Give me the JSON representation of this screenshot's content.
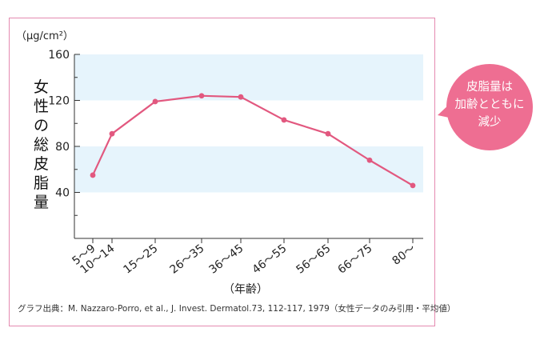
{
  "chart_data": {
    "type": "line",
    "categories": [
      "5～9",
      "10～14",
      "15～25",
      "26～35",
      "36～45",
      "46～55",
      "56～65",
      "66～75",
      "80～"
    ],
    "values": [
      55,
      91,
      119,
      124,
      123,
      103,
      91,
      68,
      46
    ],
    "series": [
      {
        "values": [
          55,
          91,
          119,
          124,
          123,
          103,
          91,
          68,
          46
        ],
        "color": "#e2587f"
      }
    ],
    "ylim": [
      0,
      160
    ],
    "yticks": [
      40,
      80,
      120,
      160
    ],
    "ytick_labels": [
      "40",
      "80",
      "120",
      "160"
    ],
    "unit": "（μg/cm²）",
    "ylabel": "女性の総皮脂量",
    "xlabel": "（年齢）",
    "grid": "alternating horizontal bands",
    "band_color": "#e6f4fc",
    "line_color": "#e2587f"
  },
  "source": "グラフ出典：M. Nazzaro-Porro, et al., J. Invest. Dermatol.73, 112-117, 1979（女性データのみ引用・平均値）",
  "callout": {
    "lines": [
      "皮脂量は",
      "加齢とともに",
      "減少"
    ],
    "color": "#ee6e92"
  },
  "frame_color": "#e58ab0"
}
